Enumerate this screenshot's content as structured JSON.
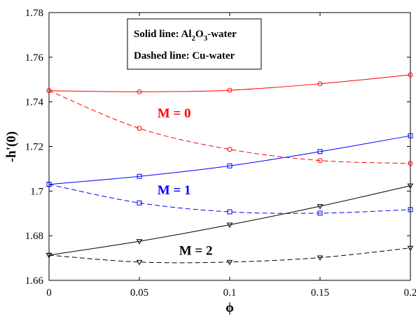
{
  "chart_data": {
    "type": "line",
    "xlabel": "ϕ",
    "ylabel": "-h'(0)",
    "xlim": [
      0,
      0.2
    ],
    "ylim": [
      1.66,
      1.78
    ],
    "x_ticks": [
      "0",
      "0.05",
      "0.1",
      "0.15",
      "0.2"
    ],
    "y_ticks": [
      "1.66",
      "1.68",
      "1.7",
      "1.72",
      "1.74",
      "1.76",
      "1.78"
    ],
    "grid": false,
    "legend_box": {
      "line1_prefix": "Solid line:  Al",
      "line1_sub1": "2",
      "line1_mid": "O",
      "line1_sub2": "3",
      "line1_suffix": "-water",
      "line2": "Dashed line: Cu-water"
    },
    "series": [
      {
        "group": "M = 0",
        "fluid": "Al2O3-water",
        "style": "solid",
        "marker": "circle",
        "color": "#ff0000",
        "x": [
          0,
          0.05,
          0.1,
          0.15,
          0.2
        ],
        "y": [
          1.745,
          1.7445,
          1.7452,
          1.7481,
          1.7521
        ]
      },
      {
        "group": "M = 0",
        "fluid": "Cu-water",
        "style": "dashed",
        "marker": "circle",
        "color": "#ff0000",
        "x": [
          0,
          0.05,
          0.1,
          0.15,
          0.2
        ],
        "y": [
          1.745,
          1.7281,
          1.7187,
          1.7137,
          1.7124
        ]
      },
      {
        "group": "M = 1",
        "fluid": "Al2O3-water",
        "style": "solid",
        "marker": "square",
        "color": "#0000ff",
        "x": [
          0,
          0.05,
          0.1,
          0.15,
          0.2
        ],
        "y": [
          1.703,
          1.7066,
          1.7113,
          1.7177,
          1.7248
        ]
      },
      {
        "group": "M = 1",
        "fluid": "Cu-water",
        "style": "dashed",
        "marker": "square",
        "color": "#0000ff",
        "x": [
          0,
          0.05,
          0.1,
          0.15,
          0.2
        ],
        "y": [
          1.703,
          1.6947,
          1.6907,
          1.6901,
          1.6917
        ]
      },
      {
        "group": "M = 2",
        "fluid": "Al2O3-water",
        "style": "solid",
        "marker": "triangle-down",
        "color": "#000000",
        "x": [
          0,
          0.05,
          0.1,
          0.15,
          0.2
        ],
        "y": [
          1.6713,
          1.6775,
          1.6849,
          1.6932,
          1.7024
        ]
      },
      {
        "group": "M = 2",
        "fluid": "Cu-water",
        "style": "dashed",
        "marker": "triangle-down",
        "color": "#000000",
        "x": [
          0,
          0.05,
          0.1,
          0.15,
          0.2
        ],
        "y": [
          1.6713,
          1.6682,
          1.6682,
          1.6702,
          1.6745
        ]
      }
    ],
    "annotations": [
      {
        "text": "M = 0",
        "color": "#ff0000",
        "at": [
          0.06,
          1.733
        ]
      },
      {
        "text": "M = 1",
        "color": "#0000ff",
        "at": [
          0.06,
          1.6985
        ]
      },
      {
        "text": "M = 2",
        "color": "#000000",
        "at": [
          0.072,
          1.6715
        ]
      }
    ]
  }
}
